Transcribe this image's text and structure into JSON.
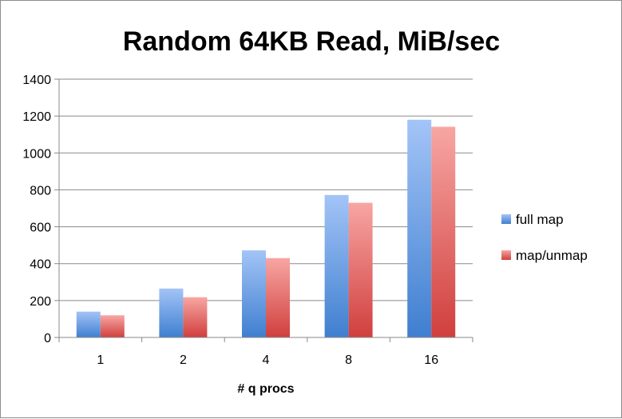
{
  "chart_data": {
    "type": "bar",
    "title": "Random 64KB Read, MiB/sec",
    "xlabel": "# q procs",
    "ylabel": "",
    "categories": [
      "1",
      "2",
      "4",
      "8",
      "16"
    ],
    "series": [
      {
        "name": "full map",
        "values": [
          140,
          265,
          472,
          772,
          1180
        ]
      },
      {
        "name": "map/unmap",
        "values": [
          120,
          218,
          430,
          730,
          1142
        ]
      }
    ],
    "ylim": [
      0,
      1400
    ],
    "yticks": [
      "0",
      "200",
      "400",
      "600",
      "800",
      "1000",
      "1200",
      "1400"
    ],
    "grid": true,
    "legend_position": "right",
    "colors": {
      "full map": {
        "top": "#a3c4f7",
        "bottom": "#3f7fd0"
      },
      "map/unmap": {
        "top": "#f7a6a3",
        "bottom": "#d03f3d"
      }
    }
  }
}
